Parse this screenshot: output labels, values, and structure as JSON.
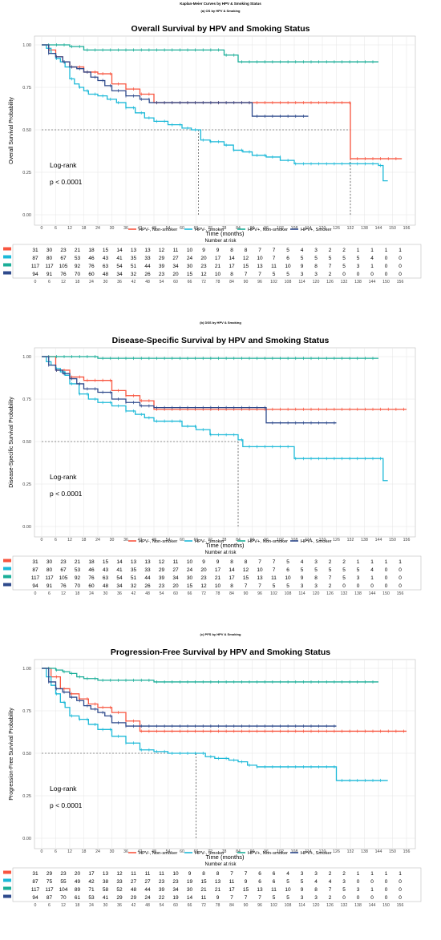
{
  "figure_title": "Kaplan-Meier Curves by HPV & Smoking Status",
  "colors": {
    "hpvneg_nonsmoker": "#F8553F",
    "hpvneg_smoker": "#1CB9D8",
    "hpvpos_nonsmoker": "#1AAE98",
    "hpvpos_smoker": "#2E4A8C",
    "grid": "#E4E4E4"
  },
  "legend_labels": [
    "HPV-, Non-smoker",
    "HPV-, Smoker",
    "HPV+, Non-smoker",
    "HPV+, Smoker"
  ],
  "risk_title": "Number at risk",
  "chart_data": [
    {
      "type": "line",
      "subtitle": "(a) OS by HPV & Smoking",
      "title": "Overall Survival by HPV and Smoking Status",
      "xlabel": "Time (months)",
      "ylabel": "Overall Survival Probability",
      "xlim": [
        0,
        156
      ],
      "ylim": [
        0,
        1
      ],
      "x_ticks": [
        0,
        6,
        12,
        18,
        24,
        30,
        36,
        42,
        48,
        54,
        60,
        66,
        72,
        78,
        84,
        90,
        96,
        102,
        108,
        114,
        120,
        126,
        132,
        138,
        144,
        150,
        156
      ],
      "y_ticks": [
        "0.00",
        "0.25",
        "0.50",
        "0.75",
        "1.00"
      ],
      "annotation": [
        "Log-rank",
        "p < 0.0001"
      ],
      "median_lines": [
        67,
        132
      ],
      "series": [
        {
          "name": "HPV-, Non-smoker",
          "x": [
            0,
            3,
            6,
            9,
            12,
            14,
            18,
            24,
            30,
            36,
            42,
            48,
            60,
            72,
            84,
            96,
            108,
            120,
            132,
            154
          ],
          "y": [
            1.0,
            0.97,
            0.93,
            0.9,
            0.87,
            0.87,
            0.84,
            0.83,
            0.77,
            0.74,
            0.71,
            0.66,
            0.66,
            0.66,
            0.66,
            0.66,
            0.66,
            0.66,
            0.33,
            0.33
          ]
        },
        {
          "name": "HPV-, Smoker",
          "x": [
            0,
            2,
            4,
            6,
            8,
            10,
            12,
            14,
            16,
            18,
            20,
            24,
            28,
            32,
            36,
            40,
            44,
            48,
            54,
            60,
            64,
            66,
            68,
            72,
            78,
            82,
            86,
            90,
            96,
            102,
            108,
            120,
            132,
            144,
            146,
            148
          ],
          "y": [
            1.0,
            0.98,
            0.95,
            0.92,
            0.9,
            0.87,
            0.8,
            0.77,
            0.75,
            0.73,
            0.71,
            0.7,
            0.68,
            0.66,
            0.63,
            0.6,
            0.57,
            0.55,
            0.53,
            0.51,
            0.5,
            0.5,
            0.44,
            0.43,
            0.41,
            0.38,
            0.37,
            0.35,
            0.34,
            0.32,
            0.3,
            0.3,
            0.3,
            0.29,
            0.2,
            0.2
          ]
        },
        {
          "name": "HPV+, Non-smoker",
          "x": [
            0,
            6,
            12,
            18,
            24,
            36,
            48,
            60,
            72,
            78,
            84,
            96,
            108,
            120,
            132,
            144
          ],
          "y": [
            1.0,
            1.0,
            0.99,
            0.97,
            0.97,
            0.97,
            0.97,
            0.97,
            0.97,
            0.94,
            0.9,
            0.9,
            0.9,
            0.9,
            0.9,
            0.9
          ]
        },
        {
          "name": "HPV+, Smoker",
          "x": [
            0,
            3,
            6,
            9,
            12,
            15,
            18,
            21,
            24,
            27,
            30,
            36,
            42,
            46,
            48,
            60,
            72,
            84,
            90,
            96,
            108,
            114
          ],
          "y": [
            1.0,
            0.95,
            0.93,
            0.9,
            0.87,
            0.86,
            0.84,
            0.81,
            0.79,
            0.76,
            0.73,
            0.7,
            0.68,
            0.66,
            0.66,
            0.66,
            0.66,
            0.66,
            0.58,
            0.58,
            0.58,
            0.58
          ]
        }
      ],
      "risk_table": [
        [
          31,
          30,
          23,
          21,
          18,
          15,
          14,
          13,
          13,
          12,
          11,
          10,
          9,
          9,
          8,
          8,
          7,
          7,
          5,
          4,
          3,
          2,
          2,
          1,
          1,
          1,
          1
        ],
        [
          87,
          80,
          67,
          53,
          46,
          43,
          41,
          35,
          33,
          29,
          27,
          24,
          20,
          17,
          14,
          12,
          10,
          7,
          6,
          5,
          5,
          5,
          5,
          5,
          4,
          0,
          0
        ],
        [
          117,
          117,
          105,
          92,
          76,
          63,
          54,
          51,
          44,
          39,
          34,
          30,
          23,
          21,
          17,
          15,
          13,
          11,
          10,
          9,
          8,
          7,
          5,
          3,
          1,
          0,
          0
        ],
        [
          94,
          91,
          76,
          70,
          60,
          48,
          34,
          32,
          26,
          23,
          20,
          15,
          12,
          10,
          8,
          7,
          7,
          5,
          5,
          3,
          3,
          2,
          0,
          0,
          0,
          0,
          0
        ]
      ]
    },
    {
      "type": "line",
      "subtitle": "(b) DSS by HPV & Smoking",
      "title": "Disease-Specific Survival by HPV and Smoking Status",
      "xlabel": "Time (months)",
      "ylabel": "Disease-Specific Survival Probability",
      "xlim": [
        0,
        156
      ],
      "ylim": [
        0,
        1
      ],
      "x_ticks": [
        0,
        6,
        12,
        18,
        24,
        30,
        36,
        42,
        48,
        54,
        60,
        66,
        72,
        78,
        84,
        90,
        96,
        102,
        108,
        114,
        120,
        126,
        132,
        138,
        144,
        150,
        156
      ],
      "y_ticks": [
        "0.00",
        "0.25",
        "0.50",
        "0.75",
        "1.00"
      ],
      "annotation": [
        "Log-rank",
        "p < 0.0001"
      ],
      "median_lines": [
        84
      ],
      "series": [
        {
          "name": "HPV-, Non-smoker",
          "x": [
            0,
            6,
            12,
            18,
            24,
            30,
            36,
            42,
            48,
            60,
            72,
            84,
            96,
            108,
            120,
            132,
            144,
            156
          ],
          "y": [
            1.0,
            0.92,
            0.88,
            0.86,
            0.86,
            0.8,
            0.77,
            0.74,
            0.69,
            0.69,
            0.69,
            0.69,
            0.69,
            0.69,
            0.69,
            0.69,
            0.69,
            0.69
          ]
        },
        {
          "name": "HPV-, Smoker",
          "x": [
            0,
            2,
            4,
            6,
            8,
            10,
            12,
            16,
            20,
            24,
            30,
            36,
            40,
            44,
            48,
            54,
            60,
            66,
            72,
            78,
            84,
            86,
            90,
            96,
            102,
            108,
            120,
            132,
            144,
            146,
            148
          ],
          "y": [
            1.0,
            0.97,
            0.95,
            0.93,
            0.91,
            0.89,
            0.84,
            0.78,
            0.75,
            0.73,
            0.71,
            0.68,
            0.66,
            0.64,
            0.62,
            0.62,
            0.59,
            0.57,
            0.54,
            0.54,
            0.51,
            0.47,
            0.47,
            0.47,
            0.47,
            0.4,
            0.4,
            0.4,
            0.4,
            0.27,
            0.27
          ]
        },
        {
          "name": "HPV+, Non-smoker",
          "x": [
            0,
            12,
            24,
            36,
            48,
            60,
            72,
            84,
            96,
            108,
            120,
            132,
            144
          ],
          "y": [
            1.0,
            1.0,
            0.99,
            0.99,
            0.99,
            0.99,
            0.99,
            0.99,
            0.99,
            0.99,
            0.99,
            0.99,
            0.99
          ]
        },
        {
          "name": "HPV+, Smoker",
          "x": [
            0,
            3,
            6,
            9,
            12,
            15,
            18,
            24,
            30,
            36,
            42,
            48,
            60,
            72,
            84,
            96,
            108,
            120,
            126
          ],
          "y": [
            1.0,
            0.95,
            0.92,
            0.9,
            0.87,
            0.84,
            0.81,
            0.79,
            0.75,
            0.73,
            0.71,
            0.7,
            0.7,
            0.7,
            0.7,
            0.61,
            0.61,
            0.61,
            0.61
          ]
        }
      ],
      "risk_table": [
        [
          31,
          30,
          23,
          21,
          18,
          15,
          14,
          13,
          13,
          12,
          11,
          10,
          9,
          9,
          8,
          8,
          7,
          7,
          5,
          4,
          3,
          2,
          2,
          1,
          1,
          1,
          1
        ],
        [
          87,
          80,
          67,
          53,
          46,
          43,
          41,
          35,
          33,
          29,
          27,
          24,
          20,
          17,
          14,
          12,
          10,
          7,
          6,
          5,
          5,
          5,
          5,
          5,
          4,
          0,
          0
        ],
        [
          117,
          117,
          105,
          92,
          76,
          63,
          54,
          51,
          44,
          39,
          34,
          30,
          23,
          21,
          17,
          15,
          13,
          11,
          10,
          9,
          8,
          7,
          5,
          3,
          1,
          0,
          0
        ],
        [
          94,
          91,
          76,
          70,
          60,
          48,
          34,
          32,
          26,
          23,
          20,
          15,
          12,
          10,
          8,
          7,
          7,
          5,
          5,
          3,
          3,
          2,
          0,
          0,
          0,
          0,
          0
        ]
      ]
    },
    {
      "type": "line",
      "subtitle": "(c) PFS by HPV & Smoking",
      "title": "Progression-Free Survival by HPV and Smoking Status",
      "xlabel": "Time (months)",
      "ylabel": "Progression-Free Survival Probability",
      "xlim": [
        0,
        156
      ],
      "ylim": [
        0,
        1
      ],
      "x_ticks": [
        0,
        6,
        12,
        18,
        24,
        30,
        36,
        42,
        48,
        54,
        60,
        66,
        72,
        78,
        84,
        90,
        96,
        102,
        108,
        114,
        120,
        126,
        132,
        138,
        144,
        150,
        156
      ],
      "y_ticks": [
        "0.00",
        "0.25",
        "0.50",
        "0.75",
        "1.00"
      ],
      "annotation": [
        "Log-rank",
        "p < 0.0001"
      ],
      "median_lines": [
        66
      ],
      "series": [
        {
          "name": "HPV-, Non-smoker",
          "x": [
            0,
            4,
            8,
            12,
            16,
            20,
            24,
            30,
            36,
            42,
            48,
            60,
            72,
            84,
            96,
            108,
            120,
            132,
            144,
            156
          ],
          "y": [
            1.0,
            0.95,
            0.88,
            0.85,
            0.82,
            0.79,
            0.77,
            0.74,
            0.69,
            0.63,
            0.63,
            0.63,
            0.63,
            0.63,
            0.63,
            0.63,
            0.63,
            0.63,
            0.63,
            0.63
          ]
        },
        {
          "name": "HPV-, Smoker",
          "x": [
            0,
            2,
            4,
            6,
            8,
            10,
            12,
            16,
            20,
            24,
            30,
            36,
            42,
            48,
            54,
            60,
            66,
            70,
            74,
            80,
            84,
            88,
            92,
            100,
            108,
            120,
            126,
            132,
            144,
            148
          ],
          "y": [
            1.0,
            0.95,
            0.9,
            0.85,
            0.8,
            0.77,
            0.72,
            0.7,
            0.67,
            0.64,
            0.6,
            0.56,
            0.52,
            0.51,
            0.5,
            0.5,
            0.5,
            0.48,
            0.47,
            0.46,
            0.45,
            0.43,
            0.42,
            0.42,
            0.42,
            0.42,
            0.34,
            0.34,
            0.34,
            0.34
          ]
        },
        {
          "name": "HPV+, Non-smoker",
          "x": [
            0,
            6,
            9,
            12,
            15,
            18,
            24,
            30,
            36,
            48,
            60,
            72,
            84,
            96,
            108,
            120,
            132,
            144
          ],
          "y": [
            1.0,
            0.99,
            0.98,
            0.97,
            0.95,
            0.94,
            0.93,
            0.93,
            0.93,
            0.92,
            0.92,
            0.92,
            0.92,
            0.92,
            0.92,
            0.92,
            0.92,
            0.92
          ]
        },
        {
          "name": "HPV+, Smoker",
          "x": [
            0,
            3,
            6,
            9,
            12,
            15,
            18,
            21,
            24,
            27,
            30,
            36,
            42,
            48,
            60,
            72,
            84,
            96,
            108,
            120,
            126
          ],
          "y": [
            1.0,
            0.92,
            0.88,
            0.86,
            0.83,
            0.81,
            0.78,
            0.76,
            0.74,
            0.72,
            0.68,
            0.66,
            0.66,
            0.66,
            0.66,
            0.66,
            0.66,
            0.66,
            0.66,
            0.66,
            0.66
          ]
        }
      ],
      "risk_table": [
        [
          31,
          29,
          23,
          20,
          17,
          13,
          12,
          11,
          11,
          11,
          10,
          9,
          8,
          8,
          7,
          7,
          6,
          6,
          4,
          3,
          3,
          2,
          2,
          1,
          1,
          1,
          1
        ],
        [
          87,
          75,
          55,
          49,
          42,
          38,
          33,
          27,
          27,
          23,
          23,
          19,
          15,
          13,
          11,
          9,
          6,
          6,
          5,
          5,
          4,
          4,
          3,
          0,
          0,
          0,
          0
        ],
        [
          117,
          117,
          104,
          89,
          71,
          58,
          52,
          48,
          44,
          39,
          34,
          30,
          21,
          21,
          17,
          15,
          13,
          11,
          10,
          9,
          8,
          7,
          5,
          3,
          1,
          0,
          0
        ],
        [
          94,
          87,
          70,
          61,
          53,
          41,
          29,
          29,
          24,
          22,
          19,
          14,
          11,
          9,
          7,
          7,
          7,
          5,
          5,
          3,
          3,
          2,
          0,
          0,
          0,
          0,
          0
        ]
      ]
    }
  ]
}
